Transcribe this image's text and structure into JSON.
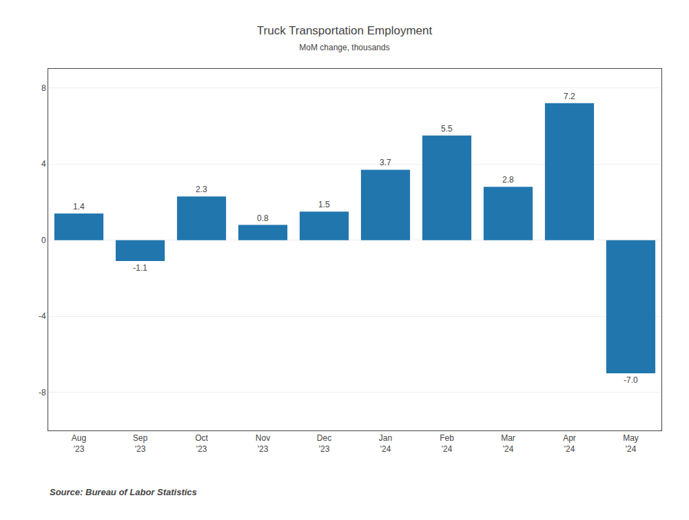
{
  "chart_data": {
    "type": "bar",
    "title": "Truck Transportation Employment",
    "subtitle": "MoM change, thousands",
    "categories": [
      "Aug\n'23",
      "Sep\n'23",
      "Oct\n'23",
      "Nov\n'23",
      "Dec\n'23",
      "Jan\n'24",
      "Feb\n'24",
      "Mar\n'24",
      "Apr\n'24",
      "May\n'24"
    ],
    "values": [
      1.4,
      -1.1,
      2.3,
      0.8,
      1.5,
      3.7,
      5.5,
      2.8,
      7.2,
      -7.0
    ],
    "value_labels": [
      "1.4",
      "-1.1",
      "2.3",
      "0.8",
      "1.5",
      "3.7",
      "5.5",
      "2.8",
      "7.2",
      "-7.0"
    ],
    "data_labels": true,
    "color": "#2176AE",
    "ylim": [
      -10,
      9
    ],
    "yticks": [
      -8,
      -4,
      0,
      4,
      8
    ],
    "grid": true,
    "annotation": "Source: Bureau of Labor Statistics"
  }
}
